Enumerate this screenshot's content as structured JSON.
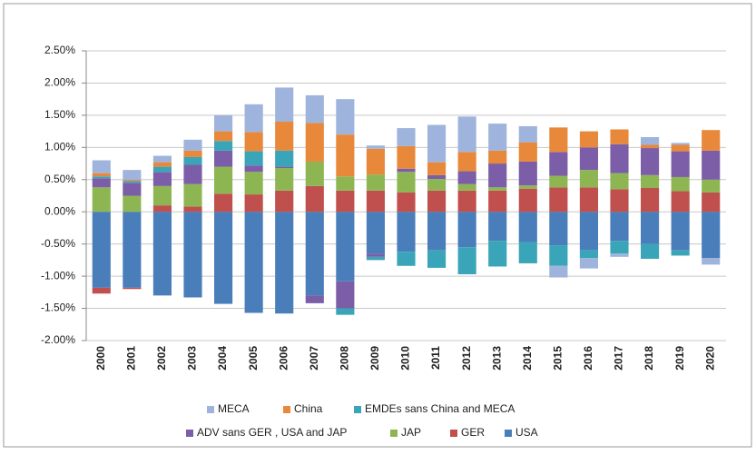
{
  "chart_data": {
    "type": "stacked_bar",
    "categories": [
      "2000",
      "2001",
      "2002",
      "2003",
      "2004",
      "2005",
      "2006",
      "2007",
      "2008",
      "2009",
      "2010",
      "2011",
      "2012",
      "2013",
      "2014",
      "2015",
      "2016",
      "2017",
      "2018",
      "2019",
      "2020"
    ],
    "series": [
      {
        "name": "MECA",
        "color": "#9fb4dc",
        "values": [
          0.2,
          0.15,
          0.1,
          0.17,
          0.25,
          0.43,
          0.53,
          0.43,
          0.55,
          0.05,
          0.28,
          0.58,
          0.55,
          0.42,
          0.25,
          -0.18,
          -0.16,
          -0.05,
          0.12,
          0.03,
          -0.1
        ]
      },
      {
        "name": "China",
        "color": "#e8883a",
        "values": [
          0.05,
          0.02,
          0.07,
          0.1,
          0.15,
          0.3,
          0.45,
          0.6,
          0.65,
          0.4,
          0.35,
          0.2,
          0.3,
          0.2,
          0.3,
          0.38,
          0.25,
          0.23,
          0.05,
          0.1,
          0.32
        ]
      },
      {
        "name": "EMDEs sans China and MECA",
        "color": "#3aa5b8",
        "values": [
          0.03,
          0.03,
          0.08,
          0.12,
          0.15,
          0.22,
          0.25,
          0,
          -0.1,
          -0.05,
          -0.22,
          -0.27,
          -0.42,
          -0.4,
          -0.33,
          -0.32,
          -0.12,
          -0.2,
          -0.23,
          -0.08,
          0
        ]
      },
      {
        "name": "ADV sans GER , USA  and JAP",
        "color": "#7b5ea7",
        "values": [
          0.14,
          0.2,
          0.22,
          0.3,
          0.25,
          0.1,
          0.02,
          -0.12,
          -0.42,
          -0.05,
          0.05,
          0.06,
          0.2,
          0.37,
          0.37,
          0.37,
          0.35,
          0.45,
          0.42,
          0.4,
          0.45
        ]
      },
      {
        "name": "JAP",
        "color": "#8db653",
        "values": [
          0.38,
          0.25,
          0.3,
          0.35,
          0.42,
          0.35,
          0.35,
          0.38,
          0.22,
          0.25,
          0.32,
          0.18,
          0.1,
          0.05,
          0.05,
          0.18,
          0.27,
          0.25,
          0.2,
          0.22,
          0.2
        ]
      },
      {
        "name": "GER",
        "color": "#c0504d",
        "values": [
          -0.09,
          -0.02,
          0.1,
          0.08,
          0.28,
          0.27,
          0.33,
          0.4,
          0.33,
          0.33,
          0.3,
          0.33,
          0.33,
          0.33,
          0.36,
          0.38,
          0.38,
          0.35,
          0.37,
          0.32,
          0.3
        ]
      },
      {
        "name": "USA",
        "color": "#4a7ebb",
        "values": [
          -1.18,
          -1.18,
          -1.3,
          -1.33,
          -1.43,
          -1.57,
          -1.58,
          -1.3,
          -1.08,
          -0.65,
          -0.62,
          -0.6,
          -0.55,
          -0.45,
          -0.47,
          -0.52,
          -0.6,
          -0.45,
          -0.5,
          -0.6,
          -0.72
        ]
      }
    ],
    "ylim": [
      -2,
      2.5
    ],
    "yticks": [
      {
        "value": -2,
        "label": "-2.00%"
      },
      {
        "value": -1.5,
        "label": "-1.50%"
      },
      {
        "value": -1,
        "label": "-1.00%"
      },
      {
        "value": -0.5,
        "label": "-0.50%"
      },
      {
        "value": 0,
        "label": "0.00%"
      },
      {
        "value": 0.5,
        "label": "0.50%"
      },
      {
        "value": 1,
        "label": "1.00%"
      },
      {
        "value": 1.5,
        "label": "1.50%"
      },
      {
        "value": 2,
        "label": "2.00%"
      },
      {
        "value": 2.5,
        "label": "2.50%"
      }
    ],
    "grid": true,
    "legend": "bottom"
  }
}
